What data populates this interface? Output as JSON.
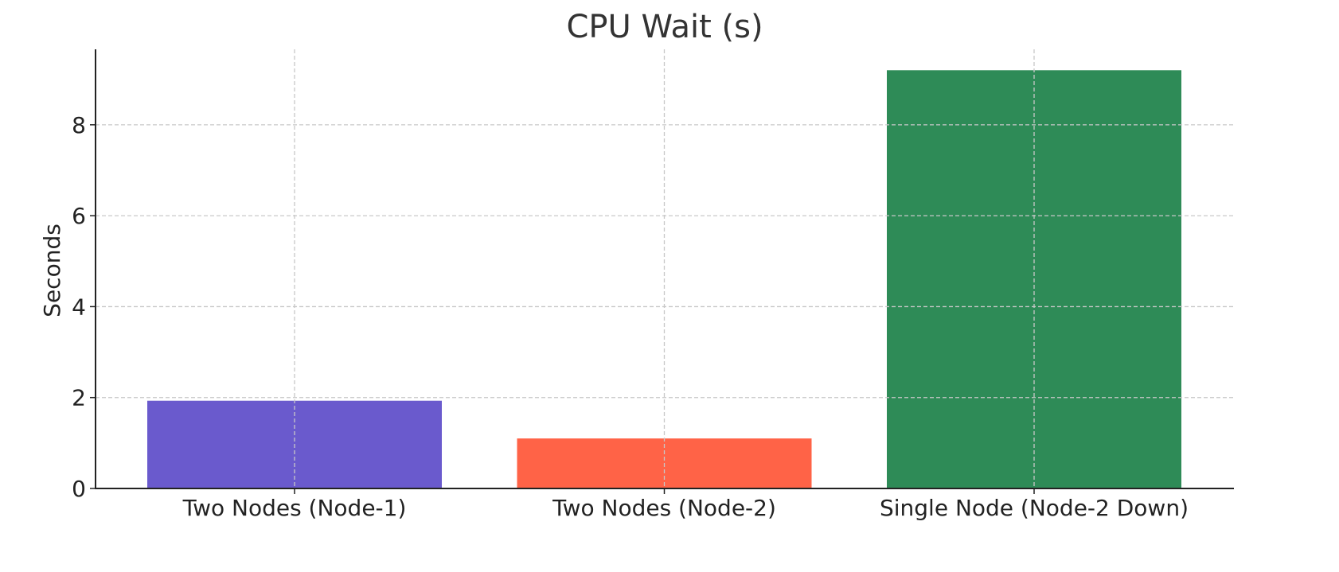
{
  "chart_data": {
    "type": "bar",
    "title": "CPU Wait (s)",
    "xlabel": "",
    "ylabel": "Seconds",
    "categories": [
      "Two Nodes (Node-1)",
      "Two Nodes (Node-2)",
      "Single Node (Node-2 Down)"
    ],
    "values": [
      1.93,
      1.1,
      9.2
    ],
    "colors": [
      "#6a5acd",
      "#ff6347",
      "#2e8b57"
    ],
    "ylim": [
      0,
      9.66
    ],
    "yticks": [
      0,
      2,
      4,
      6,
      8
    ],
    "grid": true
  }
}
